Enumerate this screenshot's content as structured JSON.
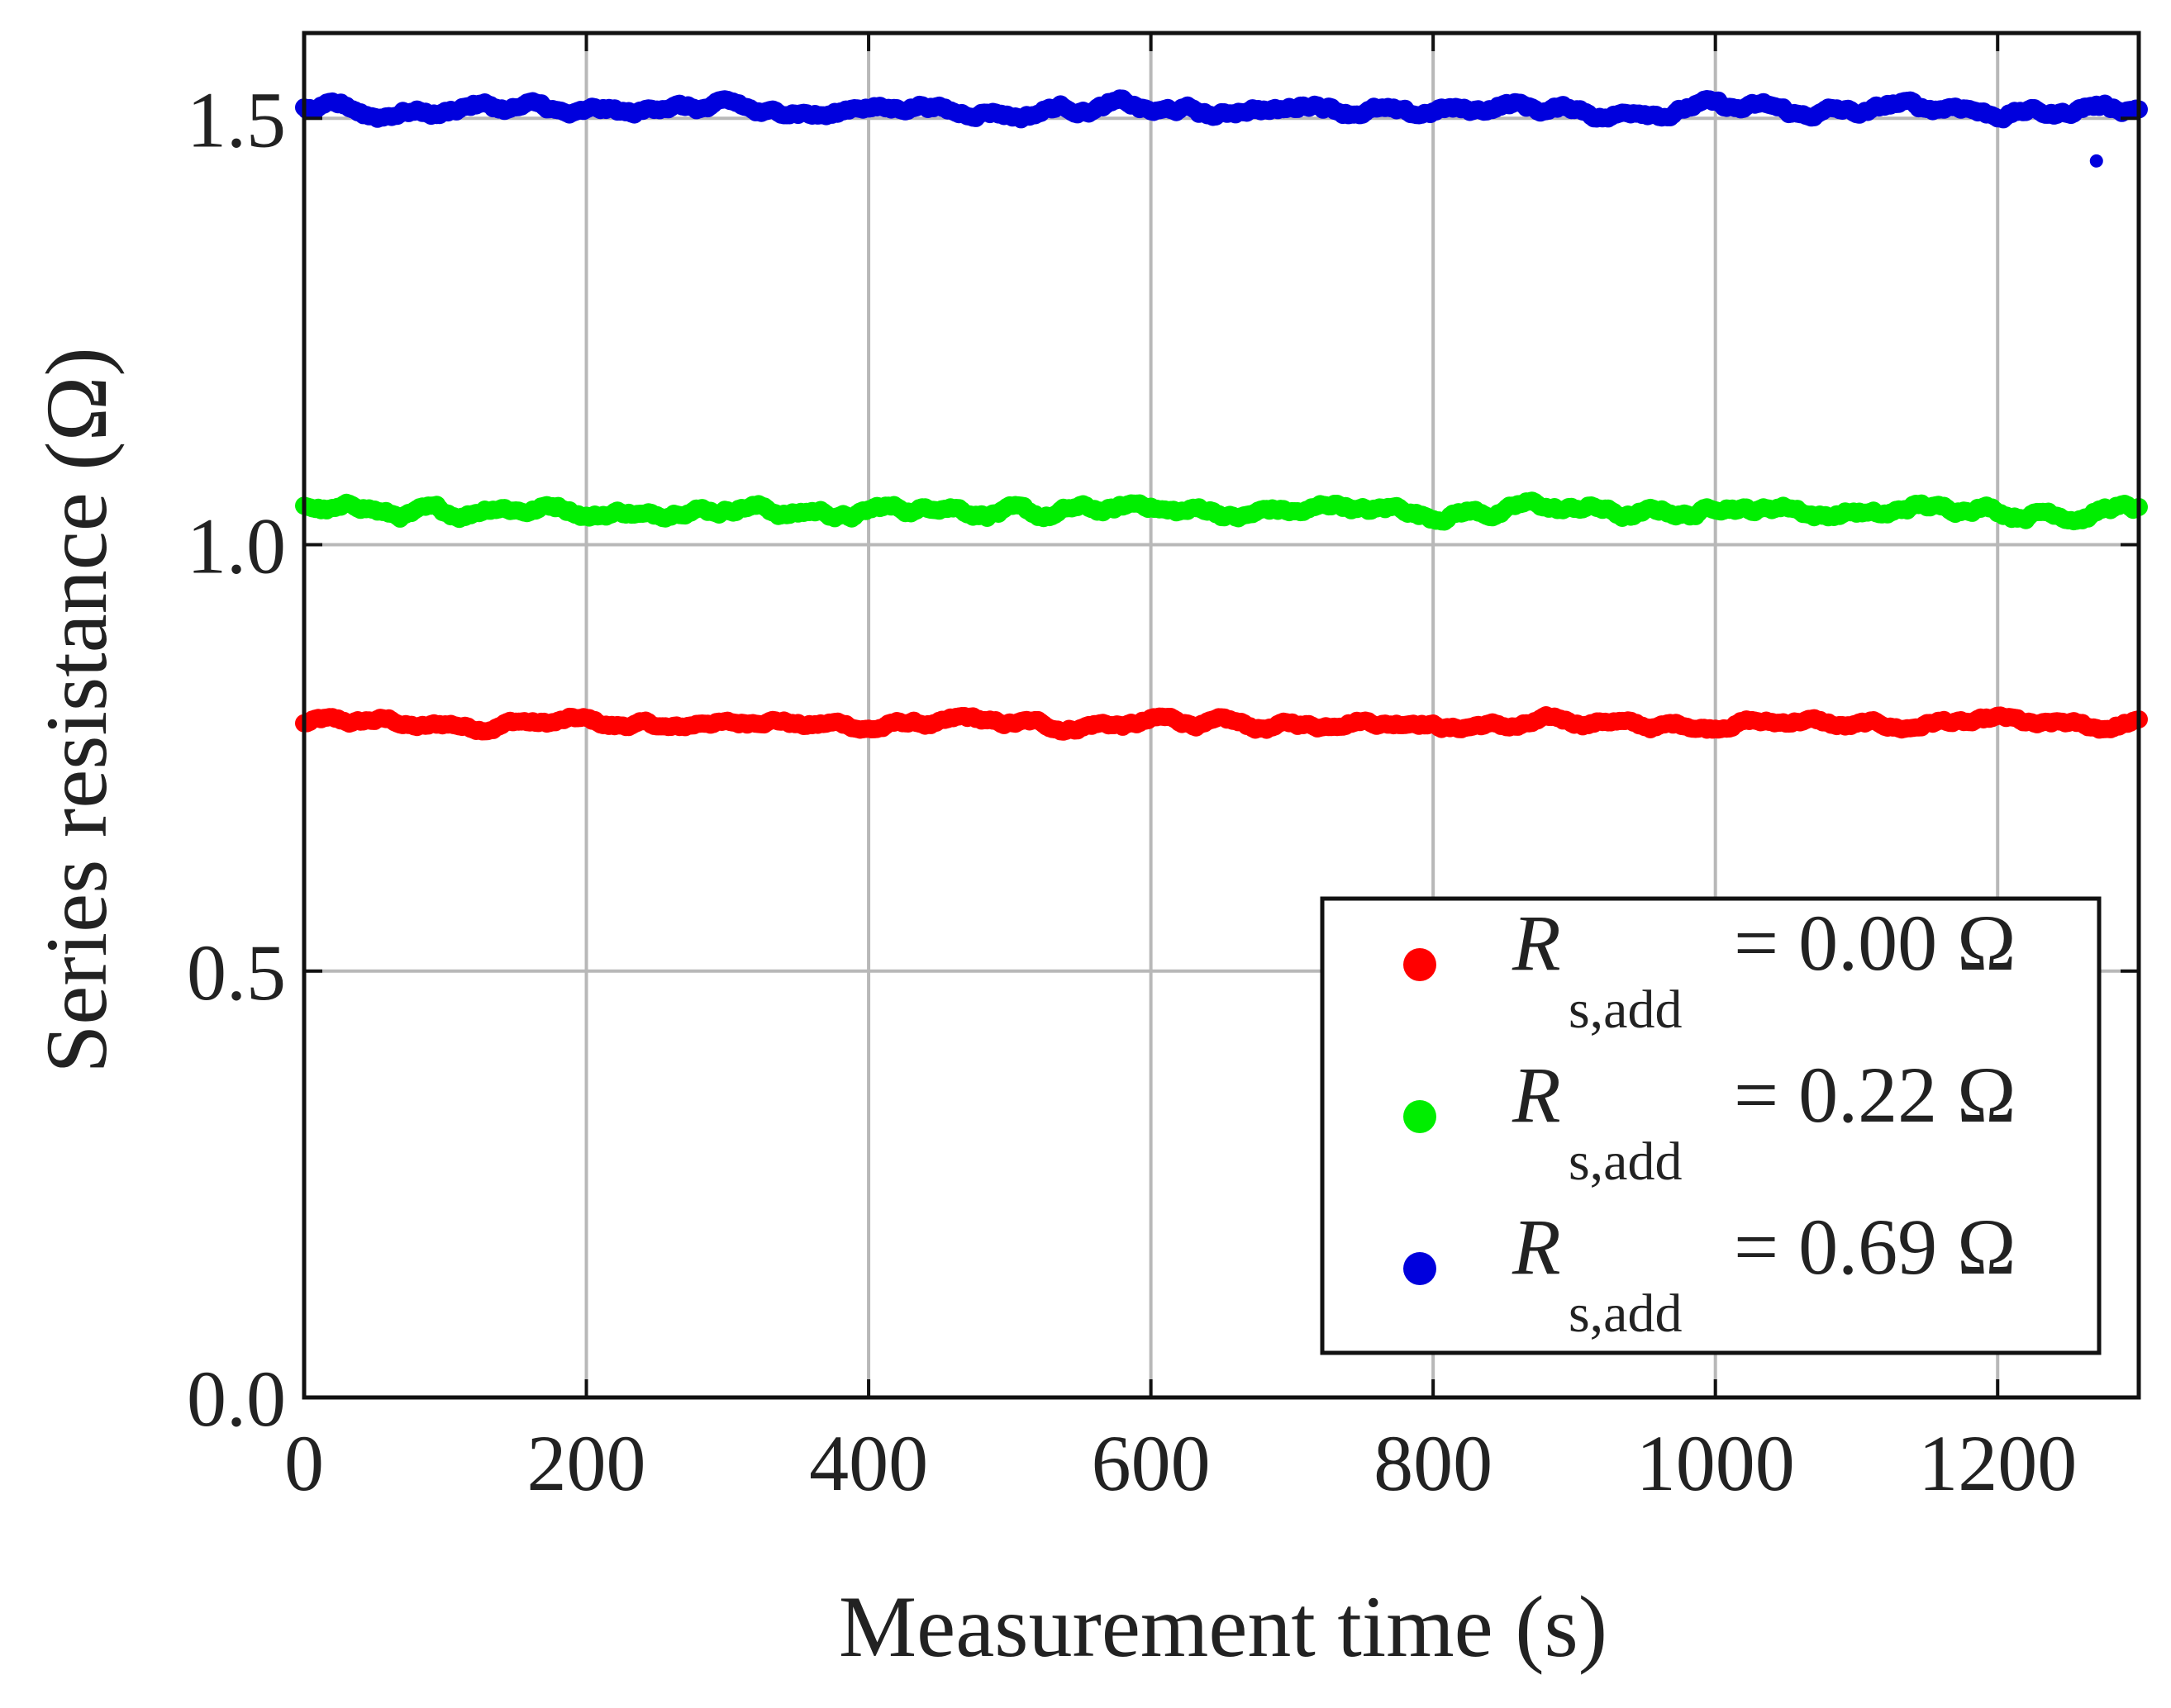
{
  "chart_data": {
    "type": "scatter",
    "title": "",
    "xlabel": "Measurement time (s)",
    "ylabel": "Series resistance (Ω)",
    "xlim": [
      0,
      1300
    ],
    "ylim": [
      0,
      1.6
    ],
    "xticks": [
      0,
      200,
      400,
      600,
      800,
      1000,
      1200
    ],
    "xtick_labels": [
      "0",
      "200",
      "400",
      "600",
      "800",
      "1000",
      "1200"
    ],
    "yticks": [
      0,
      0.5,
      1.0,
      1.5
    ],
    "ytick_labels": [
      "0.0",
      "0.5",
      "1.0",
      "1.5"
    ],
    "grid": true,
    "legend_position": "bottom-right",
    "series": [
      {
        "name": "R_s,add = 0.00 Ω",
        "legend_symbol": "R",
        "legend_subscript": "s,add",
        "legend_value": "= 0.00 Ω",
        "color": "#ff0000",
        "mean": 0.79,
        "amplitude": 0.015,
        "x_start": 0,
        "x_end": 1300,
        "step": 2
      },
      {
        "name": "R_s,add = 0.22 Ω",
        "legend_symbol": "R",
        "legend_subscript": "s,add",
        "legend_value": "= 0.22 Ω",
        "color": "#00ee00",
        "mean": 1.04,
        "amplitude": 0.02,
        "x_start": 0,
        "x_end": 1300,
        "step": 2
      },
      {
        "name": "R_s,add = 0.69 Ω",
        "legend_symbol": "R",
        "legend_subscript": "s,add",
        "legend_value": "= 0.69 Ω",
        "color": "#0000dd",
        "mean": 1.51,
        "amplitude": 0.02,
        "x_start": 0,
        "x_end": 1300,
        "step": 2
      }
    ],
    "outliers": [
      {
        "series": 2,
        "x": 1270,
        "y": 1.45
      }
    ]
  }
}
